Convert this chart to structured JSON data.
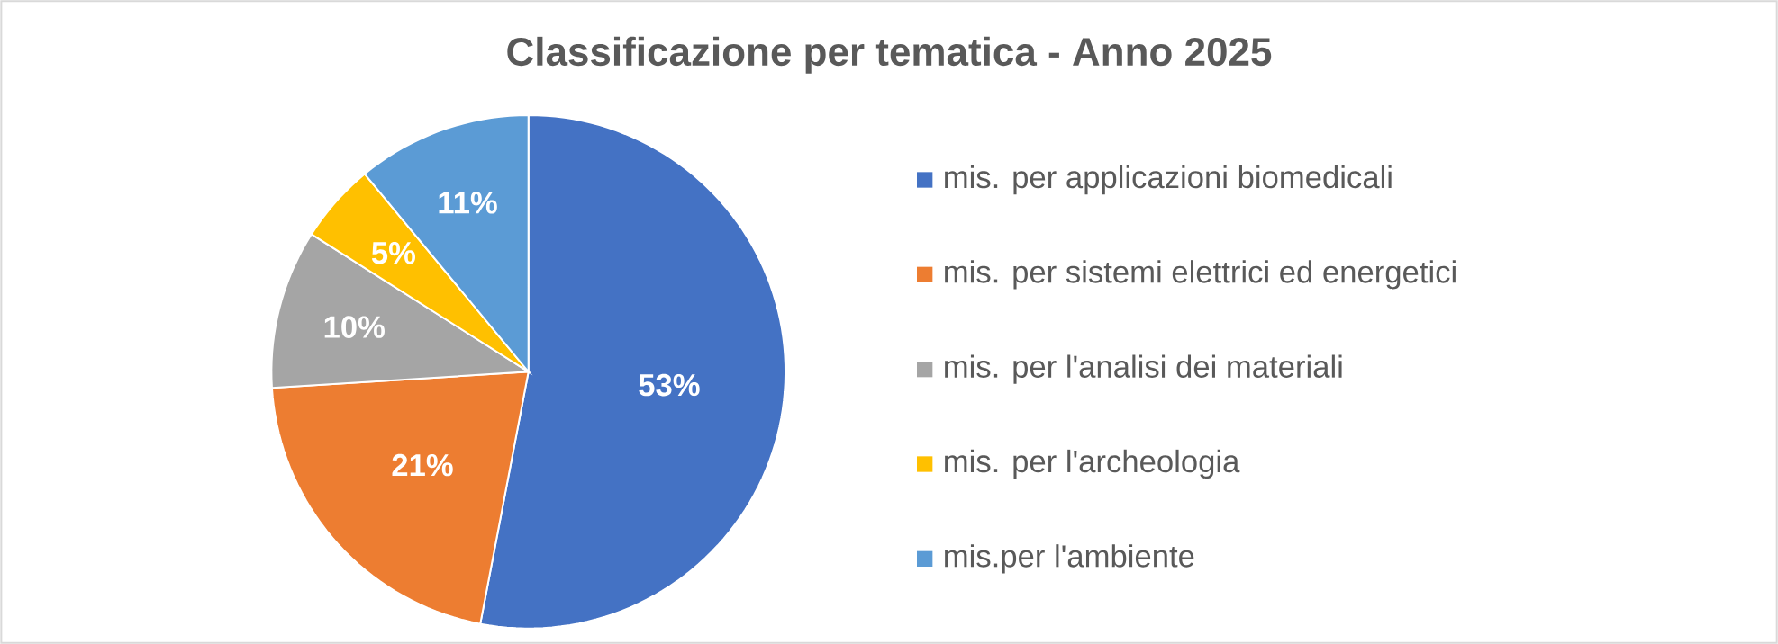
{
  "chart_data": {
    "type": "pie",
    "title": "Classificazione per tematica - Anno 2025",
    "categories": [
      "mis. per applicazioni biomedicali",
      "mis. per sistemi elettrici ed energetici",
      "mis. per l'analisi dei materiali",
      "mis. per l'archeologia",
      "mis.per l'ambiente"
    ],
    "values": [
      53,
      21,
      10,
      5,
      11
    ],
    "value_labels": [
      "53%",
      "21%",
      "10%",
      "5%",
      "11%"
    ],
    "colors": [
      "#4472c4",
      "#ed7d31",
      "#a5a5a5",
      "#ffc000",
      "#5b9bd5"
    ],
    "legend": "right"
  }
}
